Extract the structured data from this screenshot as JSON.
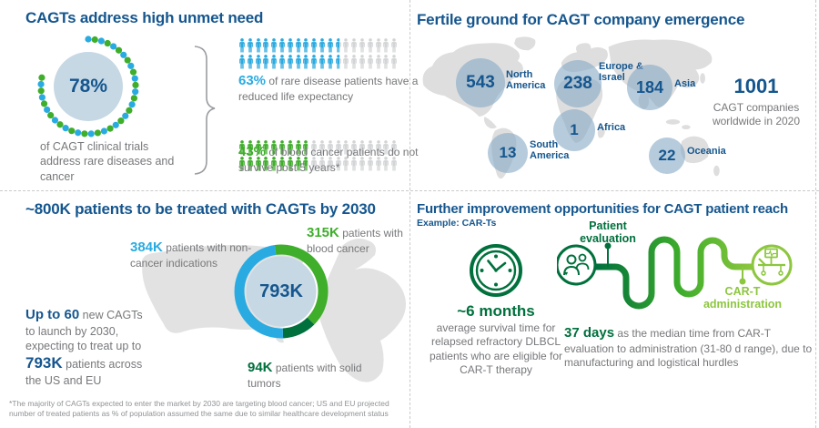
{
  "colors": {
    "heading_blue": "#15568E",
    "blue": "#29ABE2",
    "green": "#3FAE2B",
    "dark_green": "#00703C",
    "light_green": "#8DC63F",
    "gray_text": "#77787B",
    "map_gray": "#DEDEDE",
    "unfilled_gray": "#D2D4D5",
    "pale_blue": "#C6D8E4"
  },
  "panels": {
    "unmet_need": {
      "title": "CAGTs address high unmet need",
      "donut": {
        "pct": 78,
        "value_label": "78%",
        "caption": "of CAGT clinical trials address rare diseases and cancer"
      },
      "picto_rows": 2,
      "picto_per_row": 20,
      "stats": [
        {
          "pct": 63,
          "value_label": "63%",
          "text": "of rare disease patients have a reduced life expectancy",
          "color": "#29ABE2"
        },
        {
          "pct": 43,
          "value_label": "43%",
          "text": "of blood cancer patients do not survive post 5 years*",
          "color": "#3FAE2B"
        }
      ]
    },
    "emergence": {
      "title": "Fertile ground for CAGT company emergence",
      "regions": [
        {
          "value": "543",
          "label": "North America"
        },
        {
          "value": "238",
          "label": "Europe & Israel"
        },
        {
          "value": "184",
          "label": "Asia"
        },
        {
          "value": "1",
          "label": "Africa"
        },
        {
          "value": "13",
          "label": "South America"
        },
        {
          "value": "22",
          "label": "Oceania"
        }
      ],
      "total": {
        "value": "1001",
        "caption": "CAGT companies worldwide in 2020"
      }
    },
    "patients2030": {
      "title": "~800K patients to be treated with CAGTs by 2030",
      "lead_bold": "Up to 60",
      "lead_rest": "new CAGTs to launch by 2030, expecting to treat up to",
      "mid_bold": "793K",
      "tail": "patients across the US and EU",
      "donut": {
        "center_label": "793K",
        "start_angle_deg": -8,
        "segments": [
          {
            "value": 315,
            "label": "315K",
            "desc": "patients with blood cancer",
            "color": "#3FAE2B"
          },
          {
            "value": 94,
            "label": "94K",
            "desc": "patients with solid tumors",
            "color": "#00703C"
          },
          {
            "value": 384,
            "label": "384K",
            "desc": "patients with non-cancer indications",
            "color": "#29ABE2"
          }
        ]
      },
      "footnote": "*The majority of CAGTs expected to enter the market by 2030 are targeting blood cancer; US and EU projected number of treated patients as % of population assumed the same due to similar healthcare development status"
    },
    "improvement": {
      "title": "Further improvement opportunities for CAGT patient reach",
      "subtitle": "Example: CAR-Ts",
      "survival_value": "~6 months",
      "survival_text": "average survival time for relapsed refractory DLBCL patients who are eligible for CAR-T therapy",
      "journey_start_label": "Patient evaluation",
      "journey_end_label": "CAR-T administration",
      "median_value": "37 days",
      "median_text": "as the median time from CAR-T evaluation to administration (31-80 d range), due to manufacturing and logistical hurdles"
    }
  },
  "chart_data": [
    {
      "type": "pie",
      "title": "CAGT clinical trials addressing rare diseases and cancer",
      "labels": [
        "of CAGT clinical trials address rare diseases and cancer",
        "other"
      ],
      "values": [
        78,
        22
      ],
      "center_label": "78%",
      "style": "dotted-ring, alternating blue/green dots"
    },
    {
      "type": "pictogram",
      "rows": 2,
      "icons_per_row": 20,
      "series": [
        {
          "name": "rare disease patients with reduced life expectancy",
          "pct": 63,
          "color": "#29ABE2"
        },
        {
          "name": "blood cancer patients not surviving post 5 years",
          "pct": 43,
          "color": "#3FAE2B"
        }
      ]
    },
    {
      "type": "map",
      "title": "CAGT companies worldwide in 2020",
      "categories": [
        "North America",
        "Europe & Israel",
        "Asia",
        "Africa",
        "South America",
        "Oceania"
      ],
      "values": [
        543,
        238,
        184,
        1,
        13,
        22
      ],
      "total": 1001
    },
    {
      "type": "pie",
      "title": "Patients to be treated with CAGTs by 2030 (US and EU)",
      "labels": [
        "patients with blood cancer",
        "patients with solid tumors",
        "patients with non-cancer indications"
      ],
      "values": [
        315,
        94,
        384
      ],
      "units": "K patients",
      "center_label": "793K"
    }
  ]
}
